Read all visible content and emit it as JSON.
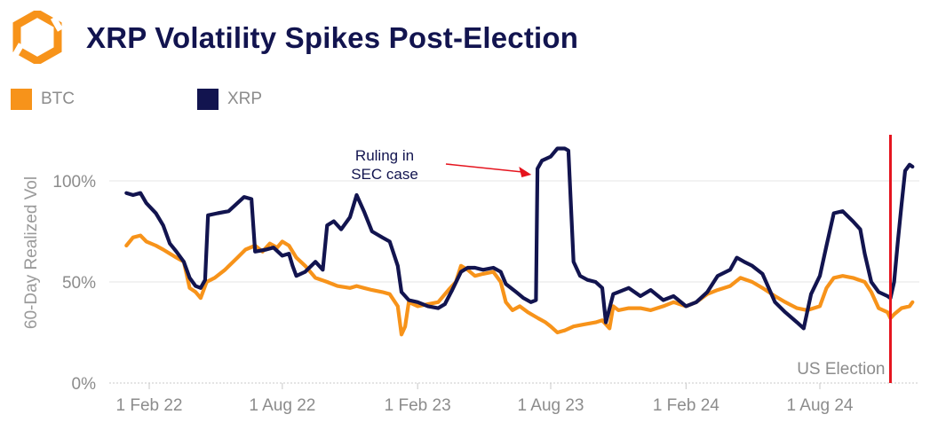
{
  "header": {
    "title": "XRP Volatility Spikes Post-Election",
    "logo_icon": "hexagon-logo-icon"
  },
  "colors": {
    "btc": "#f7931a",
    "xrp": "#12144f",
    "election": "#e5141e",
    "annotation_arrow": "#e5141e",
    "grid": "#e6e6e6",
    "baseline": "#c8c8c8"
  },
  "chart_data": {
    "type": "line",
    "title": "XRP Volatility Spikes Post-Election",
    "xlabel": "",
    "ylabel": "60-Day Realized Vol",
    "ylim": [
      0,
      1.2
    ],
    "x_ticks": [
      {
        "label": "1 Feb 22",
        "date": "2022-02-01"
      },
      {
        "label": "1 Aug 22",
        "date": "2022-08-01"
      },
      {
        "label": "1 Feb 23",
        "date": "2023-02-01"
      },
      {
        "label": "1 Aug 23",
        "date": "2023-08-01"
      },
      {
        "label": "1 Feb 24",
        "date": "2024-02-01"
      },
      {
        "label": "1 Aug 24",
        "date": "2024-08-01"
      }
    ],
    "y_ticks": [
      {
        "label": "0%",
        "value": 0
      },
      {
        "label": "50%",
        "value": 0.5
      },
      {
        "label": "100%",
        "value": 1.0
      }
    ],
    "legend_position": "top-left",
    "series": [
      {
        "name": "BTC",
        "key": "btc",
        "points": [
          [
            "2022-01-01",
            0.68
          ],
          [
            "2022-01-10",
            0.72
          ],
          [
            "2022-01-20",
            0.73
          ],
          [
            "2022-01-28",
            0.7
          ],
          [
            "2022-02-10",
            0.68
          ],
          [
            "2022-02-20",
            0.66
          ],
          [
            "2022-03-01",
            0.64
          ],
          [
            "2022-03-10",
            0.62
          ],
          [
            "2022-03-20",
            0.6
          ],
          [
            "2022-03-28",
            0.47
          ],
          [
            "2022-04-05",
            0.45
          ],
          [
            "2022-04-12",
            0.42
          ],
          [
            "2022-04-20",
            0.5
          ],
          [
            "2022-05-01",
            0.52
          ],
          [
            "2022-05-15",
            0.56
          ],
          [
            "2022-06-01",
            0.62
          ],
          [
            "2022-06-12",
            0.66
          ],
          [
            "2022-06-25",
            0.68
          ],
          [
            "2022-07-05",
            0.65
          ],
          [
            "2022-07-15",
            0.69
          ],
          [
            "2022-07-25",
            0.67
          ],
          [
            "2022-08-01",
            0.7
          ],
          [
            "2022-08-10",
            0.68
          ],
          [
            "2022-08-20",
            0.62
          ],
          [
            "2022-09-01",
            0.58
          ],
          [
            "2022-09-15",
            0.52
          ],
          [
            "2022-10-01",
            0.5
          ],
          [
            "2022-10-15",
            0.48
          ],
          [
            "2022-11-01",
            0.47
          ],
          [
            "2022-11-10",
            0.48
          ],
          [
            "2022-11-20",
            0.47
          ],
          [
            "2022-12-01",
            0.46
          ],
          [
            "2022-12-15",
            0.45
          ],
          [
            "2022-12-25",
            0.44
          ],
          [
            "2023-01-05",
            0.38
          ],
          [
            "2023-01-10",
            0.24
          ],
          [
            "2023-01-15",
            0.28
          ],
          [
            "2023-01-20",
            0.4
          ],
          [
            "2023-02-01",
            0.38
          ],
          [
            "2023-02-15",
            0.39
          ],
          [
            "2023-03-01",
            0.4
          ],
          [
            "2023-03-15",
            0.46
          ],
          [
            "2023-03-25",
            0.5
          ],
          [
            "2023-04-01",
            0.58
          ],
          [
            "2023-04-10",
            0.56
          ],
          [
            "2023-04-20",
            0.53
          ],
          [
            "2023-05-01",
            0.54
          ],
          [
            "2023-05-15",
            0.55
          ],
          [
            "2023-05-25",
            0.5
          ],
          [
            "2023-06-01",
            0.4
          ],
          [
            "2023-06-10",
            0.36
          ],
          [
            "2023-06-20",
            0.38
          ],
          [
            "2023-07-01",
            0.35
          ],
          [
            "2023-07-15",
            0.32
          ],
          [
            "2023-07-25",
            0.3
          ],
          [
            "2023-08-01",
            0.28
          ],
          [
            "2023-08-10",
            0.25
          ],
          [
            "2023-08-20",
            0.26
          ],
          [
            "2023-09-01",
            0.28
          ],
          [
            "2023-09-15",
            0.29
          ],
          [
            "2023-10-01",
            0.3
          ],
          [
            "2023-10-10",
            0.31
          ],
          [
            "2023-10-20",
            0.27
          ],
          [
            "2023-10-25",
            0.38
          ],
          [
            "2023-11-01",
            0.36
          ],
          [
            "2023-11-15",
            0.37
          ],
          [
            "2023-12-01",
            0.37
          ],
          [
            "2023-12-15",
            0.36
          ],
          [
            "2024-01-01",
            0.38
          ],
          [
            "2024-01-15",
            0.4
          ],
          [
            "2024-02-01",
            0.38
          ],
          [
            "2024-02-15",
            0.4
          ],
          [
            "2024-03-01",
            0.44
          ],
          [
            "2024-03-15",
            0.46
          ],
          [
            "2024-04-01",
            0.48
          ],
          [
            "2024-04-15",
            0.52
          ],
          [
            "2024-05-01",
            0.5
          ],
          [
            "2024-05-15",
            0.47
          ],
          [
            "2024-06-01",
            0.43
          ],
          [
            "2024-06-15",
            0.4
          ],
          [
            "2024-07-01",
            0.37
          ],
          [
            "2024-07-15",
            0.36
          ],
          [
            "2024-08-01",
            0.38
          ],
          [
            "2024-08-10",
            0.47
          ],
          [
            "2024-08-20",
            0.52
          ],
          [
            "2024-09-01",
            0.53
          ],
          [
            "2024-09-15",
            0.52
          ],
          [
            "2024-10-01",
            0.5
          ],
          [
            "2024-10-10",
            0.45
          ],
          [
            "2024-10-20",
            0.37
          ],
          [
            "2024-11-01",
            0.35
          ],
          [
            "2024-11-05",
            0.32
          ],
          [
            "2024-11-10",
            0.34
          ],
          [
            "2024-11-20",
            0.37
          ],
          [
            "2024-12-01",
            0.38
          ],
          [
            "2024-12-05",
            0.4
          ]
        ]
      },
      {
        "name": "XRP",
        "key": "xrp",
        "points": [
          [
            "2022-01-01",
            0.94
          ],
          [
            "2022-01-10",
            0.93
          ],
          [
            "2022-01-20",
            0.94
          ],
          [
            "2022-01-28",
            0.89
          ],
          [
            "2022-02-10",
            0.84
          ],
          [
            "2022-02-20",
            0.78
          ],
          [
            "2022-03-01",
            0.69
          ],
          [
            "2022-03-10",
            0.65
          ],
          [
            "2022-03-20",
            0.6
          ],
          [
            "2022-03-28",
            0.52
          ],
          [
            "2022-04-05",
            0.48
          ],
          [
            "2022-04-12",
            0.47
          ],
          [
            "2022-04-18",
            0.51
          ],
          [
            "2022-04-22",
            0.83
          ],
          [
            "2022-05-05",
            0.84
          ],
          [
            "2022-05-20",
            0.85
          ],
          [
            "2022-06-01",
            0.89
          ],
          [
            "2022-06-10",
            0.92
          ],
          [
            "2022-06-20",
            0.91
          ],
          [
            "2022-06-25",
            0.65
          ],
          [
            "2022-07-10",
            0.66
          ],
          [
            "2022-07-20",
            0.67
          ],
          [
            "2022-08-01",
            0.63
          ],
          [
            "2022-08-10",
            0.64
          ],
          [
            "2022-08-15",
            0.58
          ],
          [
            "2022-08-20",
            0.53
          ],
          [
            "2022-09-01",
            0.55
          ],
          [
            "2022-09-15",
            0.6
          ],
          [
            "2022-09-25",
            0.56
          ],
          [
            "2022-10-01",
            0.78
          ],
          [
            "2022-10-10",
            0.8
          ],
          [
            "2022-10-20",
            0.76
          ],
          [
            "2022-11-01",
            0.82
          ],
          [
            "2022-11-10",
            0.93
          ],
          [
            "2022-11-20",
            0.85
          ],
          [
            "2022-12-01",
            0.75
          ],
          [
            "2022-12-15",
            0.72
          ],
          [
            "2022-12-25",
            0.7
          ],
          [
            "2023-01-05",
            0.58
          ],
          [
            "2023-01-10",
            0.45
          ],
          [
            "2023-01-20",
            0.41
          ],
          [
            "2023-02-01",
            0.4
          ],
          [
            "2023-02-15",
            0.38
          ],
          [
            "2023-03-01",
            0.37
          ],
          [
            "2023-03-10",
            0.39
          ],
          [
            "2023-03-20",
            0.46
          ],
          [
            "2023-04-01",
            0.55
          ],
          [
            "2023-04-10",
            0.57
          ],
          [
            "2023-04-20",
            0.57
          ],
          [
            "2023-05-01",
            0.56
          ],
          [
            "2023-05-15",
            0.57
          ],
          [
            "2023-05-25",
            0.55
          ],
          [
            "2023-06-01",
            0.49
          ],
          [
            "2023-06-15",
            0.45
          ],
          [
            "2023-06-25",
            0.42
          ],
          [
            "2023-07-05",
            0.4
          ],
          [
            "2023-07-12",
            0.41
          ],
          [
            "2023-07-14",
            1.06
          ],
          [
            "2023-07-20",
            1.1
          ],
          [
            "2023-08-01",
            1.12
          ],
          [
            "2023-08-10",
            1.16
          ],
          [
            "2023-08-20",
            1.16
          ],
          [
            "2023-08-25",
            1.15
          ],
          [
            "2023-09-01",
            0.6
          ],
          [
            "2023-09-10",
            0.53
          ],
          [
            "2023-09-20",
            0.51
          ],
          [
            "2023-10-01",
            0.5
          ],
          [
            "2023-10-10",
            0.47
          ],
          [
            "2023-10-15",
            0.3
          ],
          [
            "2023-10-25",
            0.44
          ],
          [
            "2023-11-01",
            0.45
          ],
          [
            "2023-11-15",
            0.47
          ],
          [
            "2023-12-01",
            0.43
          ],
          [
            "2023-12-15",
            0.46
          ],
          [
            "2024-01-01",
            0.41
          ],
          [
            "2024-01-15",
            0.43
          ],
          [
            "2024-02-01",
            0.38
          ],
          [
            "2024-02-15",
            0.4
          ],
          [
            "2024-03-01",
            0.45
          ],
          [
            "2024-03-15",
            0.53
          ],
          [
            "2024-04-01",
            0.56
          ],
          [
            "2024-04-10",
            0.62
          ],
          [
            "2024-04-20",
            0.6
          ],
          [
            "2024-05-01",
            0.58
          ],
          [
            "2024-05-15",
            0.54
          ],
          [
            "2024-06-01",
            0.4
          ],
          [
            "2024-06-15",
            0.35
          ],
          [
            "2024-07-01",
            0.3
          ],
          [
            "2024-07-10",
            0.27
          ],
          [
            "2024-07-20",
            0.44
          ],
          [
            "2024-08-01",
            0.53
          ],
          [
            "2024-08-10",
            0.68
          ],
          [
            "2024-08-20",
            0.84
          ],
          [
            "2024-09-01",
            0.85
          ],
          [
            "2024-09-15",
            0.8
          ],
          [
            "2024-09-25",
            0.76
          ],
          [
            "2024-10-01",
            0.64
          ],
          [
            "2024-10-10",
            0.5
          ],
          [
            "2024-10-20",
            0.45
          ],
          [
            "2024-11-01",
            0.43
          ],
          [
            "2024-11-05",
            0.42
          ],
          [
            "2024-11-10",
            0.5
          ],
          [
            "2024-11-15",
            0.7
          ],
          [
            "2024-11-20",
            0.88
          ],
          [
            "2024-11-25",
            1.05
          ],
          [
            "2024-12-01",
            1.08
          ],
          [
            "2024-12-05",
            1.07
          ]
        ]
      }
    ],
    "annotations": [
      {
        "name": "sec-ruling",
        "lines": [
          "Ruling in",
          "SEC case"
        ],
        "points_to": {
          "date": "2023-07-13",
          "value": 1.06
        }
      },
      {
        "name": "us-election",
        "text": "US Election",
        "date": "2024-11-05"
      }
    ]
  }
}
